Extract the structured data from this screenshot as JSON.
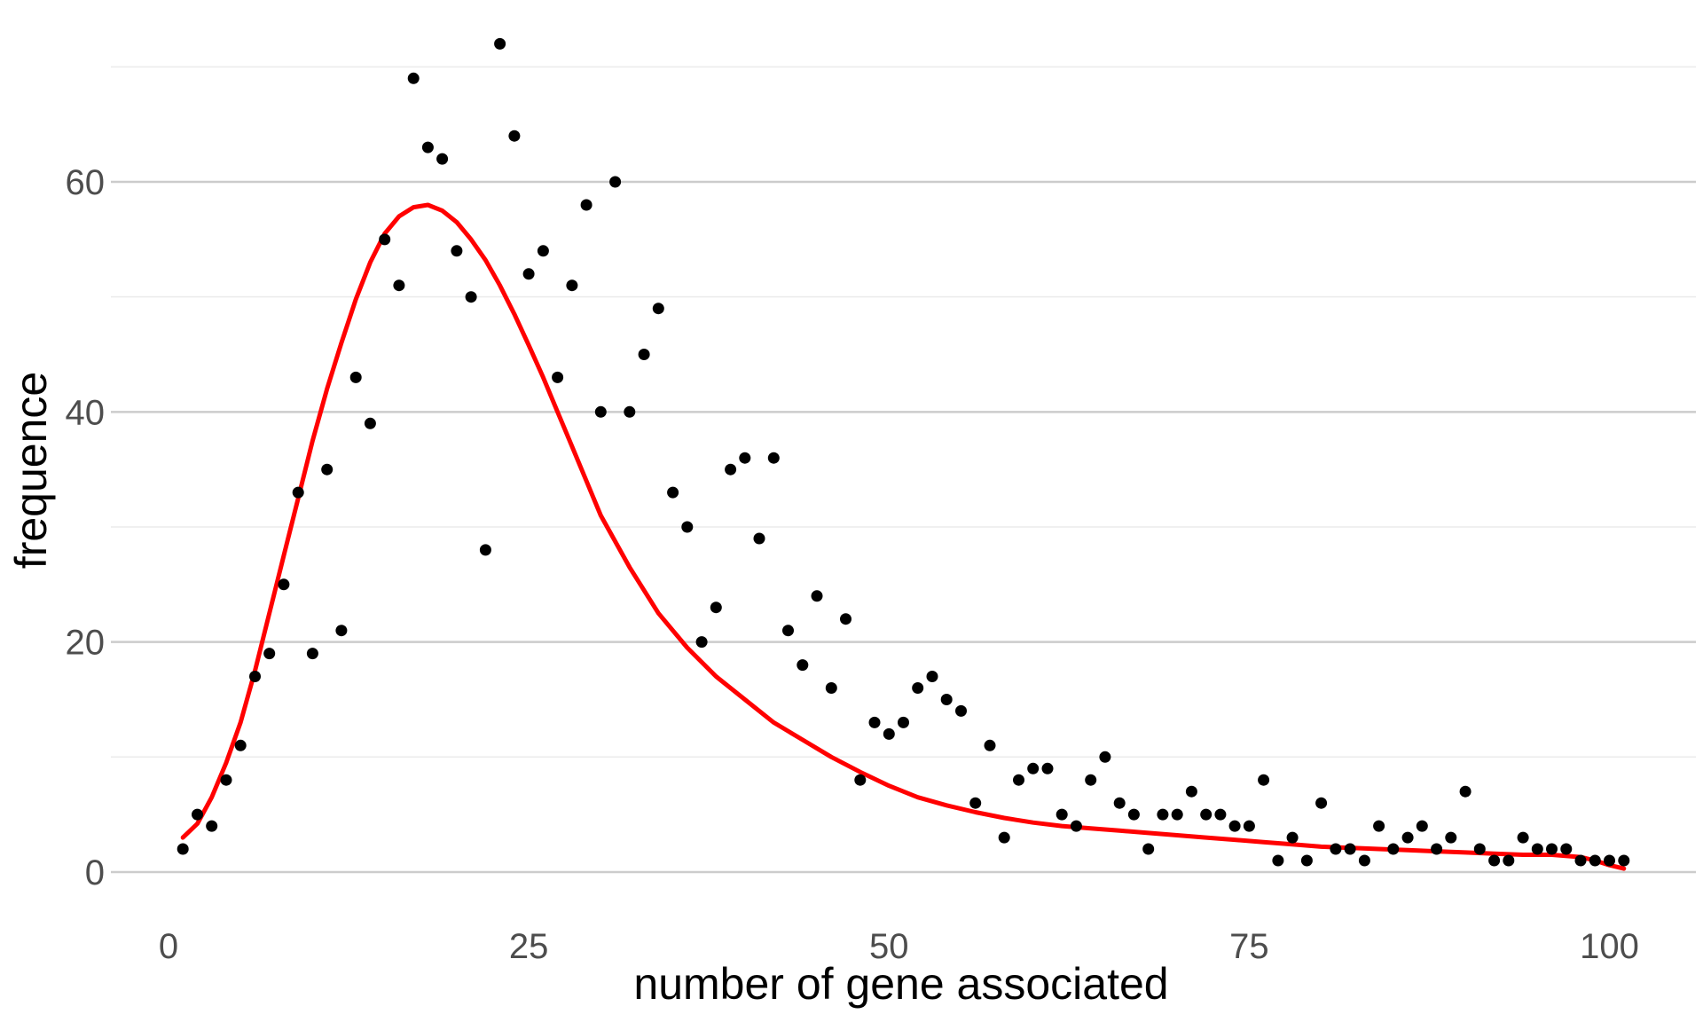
{
  "chart_data": {
    "type": "scatter",
    "title": "",
    "xlabel": "number of gene associated",
    "ylabel": "frequence",
    "xlim": [
      -4,
      106
    ],
    "ylim": [
      -4.4,
      73.5
    ],
    "x_ticks": [
      0,
      25,
      50,
      75,
      100
    ],
    "x_tick_labels": [
      "0",
      "25",
      "50",
      "75",
      "100"
    ],
    "y_ticks": [
      0,
      20,
      40,
      60
    ],
    "y_tick_labels": [
      "0",
      "20",
      "40",
      "60"
    ],
    "y_minor_ticks": [
      10,
      30,
      50,
      70
    ],
    "grid": true,
    "legend": "none",
    "colors": {
      "points": "#000000",
      "fit": "#ff0000",
      "grid_major": "#cccccc",
      "grid_minor": "#ebebeb"
    },
    "series": [
      {
        "kind": "points",
        "x": [
          1,
          2,
          3,
          4,
          5,
          6,
          7,
          8,
          9,
          10,
          11,
          12,
          13,
          14,
          15,
          16,
          17,
          18,
          19,
          20,
          21,
          22,
          23,
          24,
          25,
          26,
          27,
          28,
          29,
          30,
          31,
          32,
          33,
          34,
          35,
          36,
          37,
          38,
          39,
          40,
          41,
          42,
          43,
          44,
          45,
          46,
          47,
          48,
          49,
          50,
          51,
          52,
          53,
          54,
          55,
          56,
          57,
          58,
          59,
          60,
          61,
          62,
          63,
          64,
          65,
          66,
          67,
          68,
          69,
          70,
          71,
          72,
          73,
          74,
          75,
          76,
          77,
          78,
          79,
          80,
          81,
          82,
          83,
          84,
          85,
          86,
          87,
          88,
          89,
          90,
          91,
          92,
          93,
          94,
          95,
          96,
          97,
          98,
          99,
          100,
          101
        ],
        "y": [
          2,
          5,
          4,
          8,
          11,
          17,
          19,
          25,
          33,
          19,
          35,
          21,
          43,
          39,
          55,
          51,
          69,
          63,
          62,
          54,
          50,
          28,
          72,
          64,
          52,
          54,
          43,
          51,
          58,
          40,
          60,
          40,
          45,
          49,
          33,
          30,
          20,
          23,
          35,
          36,
          29,
          36,
          21,
          18,
          24,
          16,
          22,
          8,
          13,
          12,
          13,
          16,
          17,
          15,
          14,
          6,
          11,
          3,
          8,
          9,
          9,
          5,
          4,
          8,
          10,
          6,
          5,
          2,
          5,
          5,
          7,
          5,
          5,
          4,
          4,
          8,
          1,
          3,
          1,
          6,
          2,
          2,
          1,
          4,
          2,
          3,
          4,
          2,
          3,
          7,
          2,
          1,
          1,
          3,
          2,
          2,
          2,
          1,
          1,
          1,
          1
        ]
      },
      {
        "kind": "smooth-line",
        "x": [
          1,
          2,
          3,
          4,
          5,
          6,
          7,
          8,
          9,
          10,
          11,
          12,
          13,
          14,
          15,
          16,
          17,
          18,
          19,
          20,
          21,
          22,
          23,
          24,
          25,
          26,
          27,
          28,
          29,
          30,
          32,
          34,
          36,
          38,
          40,
          42,
          44,
          46,
          48,
          50,
          52,
          54,
          56,
          58,
          60,
          62,
          64,
          66,
          68,
          70,
          72,
          74,
          76,
          78,
          80,
          82,
          84,
          86,
          88,
          90,
          92,
          94,
          96,
          98,
          99,
          100,
          101
        ],
        "y": [
          3,
          4.2,
          6.5,
          9.5,
          13,
          17.5,
          22.5,
          27.5,
          32.5,
          37.5,
          42,
          46,
          49.8,
          53,
          55.5,
          57,
          57.8,
          58,
          57.5,
          56.5,
          55,
          53.2,
          51,
          48.5,
          45.8,
          43,
          40,
          37,
          34,
          31,
          26.5,
          22.5,
          19.5,
          17,
          15,
          13,
          11.5,
          10,
          8.7,
          7.5,
          6.5,
          5.8,
          5.2,
          4.7,
          4.3,
          4,
          3.8,
          3.6,
          3.4,
          3.2,
          3,
          2.8,
          2.6,
          2.4,
          2.2,
          2.1,
          2,
          1.9,
          1.8,
          1.7,
          1.6,
          1.5,
          1.5,
          1.3,
          1.0,
          0.6,
          0.3
        ]
      }
    ]
  }
}
